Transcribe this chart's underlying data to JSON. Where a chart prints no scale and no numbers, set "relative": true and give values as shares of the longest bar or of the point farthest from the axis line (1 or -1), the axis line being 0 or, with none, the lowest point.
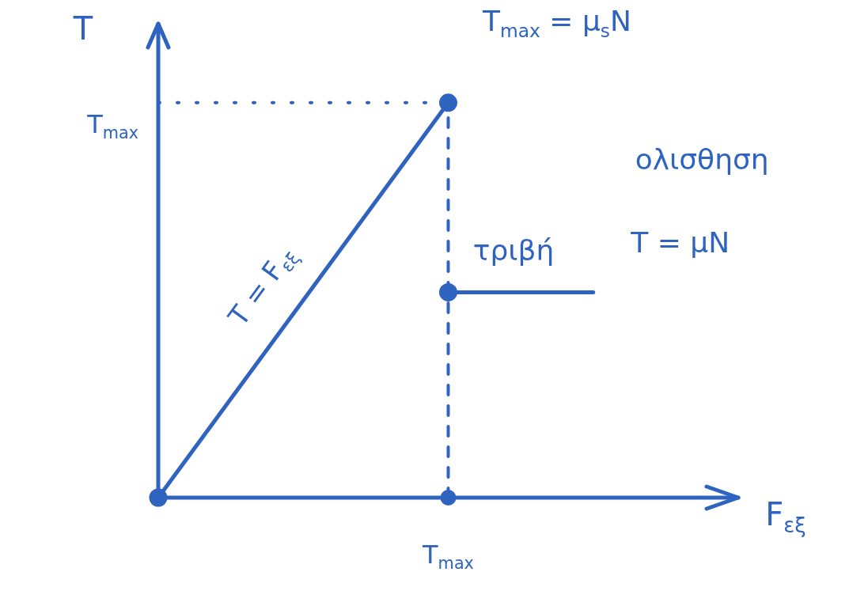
{
  "chart_data": {
    "type": "line",
    "relative": true,
    "xlabel": "F$_{εξ}$",
    "ylabel": "T",
    "legend": false,
    "marker": "circle",
    "line_style": "solid",
    "categories": [
      null,
      null,
      null,
      null,
      null
    ],
    "series": [
      {
        "color": "#2f63c0",
        "values": [
          0,
          0.5,
          1,
          null,
          null
        ]
      },
      {
        "color": "#2f63c0",
        "values": [
          null,
          null,
          0.52,
          0.52,
          null
        ]
      }
    ],
    "ref_lines": [
      {
        "axis": "y",
        "value": 1,
        "label": "T$_{max}$",
        "line_style": "dotted",
        "color": "#2f63c0"
      },
      {
        "axis": "x",
        "value": "T$_{max}$",
        "line_style": "dashed",
        "color": "#2f63c0"
      },
      {
        "axis": "y",
        "value": 0,
        "line_style": "solid",
        "color": "#2f63c0"
      }
    ],
    "annotations": [
      "T$_{max}$ = μ$_{s}$N",
      "T = F$_{εξ}$",
      "τριβή",
      "ολισθηση",
      "T = μN"
    ]
  }
}
